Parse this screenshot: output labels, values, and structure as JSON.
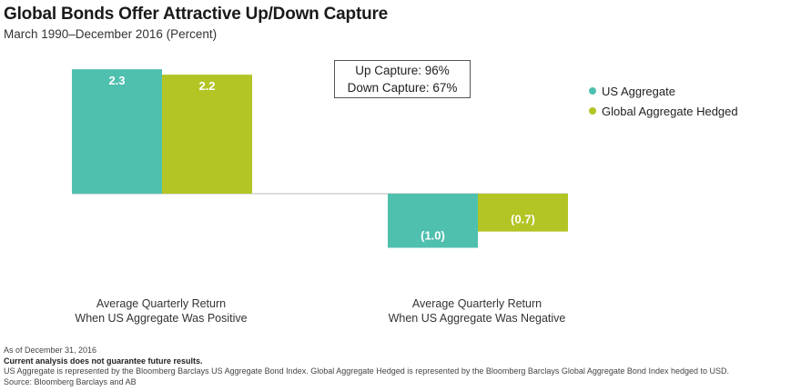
{
  "title": "Global Bonds Offer Attractive Up/Down Capture",
  "subtitle": "March 1990–December 2016 (Percent)",
  "capture_box": {
    "up": "Up Capture: 96%",
    "down": "Down Capture: 67%"
  },
  "legend": [
    {
      "label": "US Aggregate",
      "color": "#4fbfae"
    },
    {
      "label": "Global Aggregate Hedged",
      "color": "#b2c525"
    }
  ],
  "chart_data": {
    "type": "bar",
    "title": "Global Bonds Offer Attractive Up/Down Capture",
    "subtitle": "March 1990–December 2016 (Percent)",
    "categories": [
      [
        "Average Quarterly Return",
        "When US Aggregate Was Positive"
      ],
      [
        "Average Quarterly Return",
        "When US Aggregate Was Negative"
      ]
    ],
    "series": [
      {
        "name": "US Aggregate",
        "values": [
          2.3,
          -1.0
        ],
        "labels": [
          "2.3",
          "(1.0)"
        ],
        "color": "#4fbfae"
      },
      {
        "name": "Global Aggregate Hedged",
        "values": [
          2.2,
          -0.7
        ],
        "labels": [
          "2.2",
          "(0.7)"
        ],
        "color": "#b2c525"
      }
    ],
    "xlabel": "",
    "ylabel": "",
    "ylim": [
      -1.2,
      2.5
    ],
    "grid": false,
    "legend_position": "right"
  },
  "footnotes": {
    "date": "As of December 31, 2016",
    "disclaimer": "Current analysis does not guarantee future results.",
    "description": "US Aggregate is represented by the Bloomberg Barclays US Aggregate Bond Index. Global Aggregate Hedged is represented by the Bloomberg Barclays Global Aggregate Bond Index hedged to USD.",
    "source": "Source: Bloomberg Barclays and AB"
  }
}
